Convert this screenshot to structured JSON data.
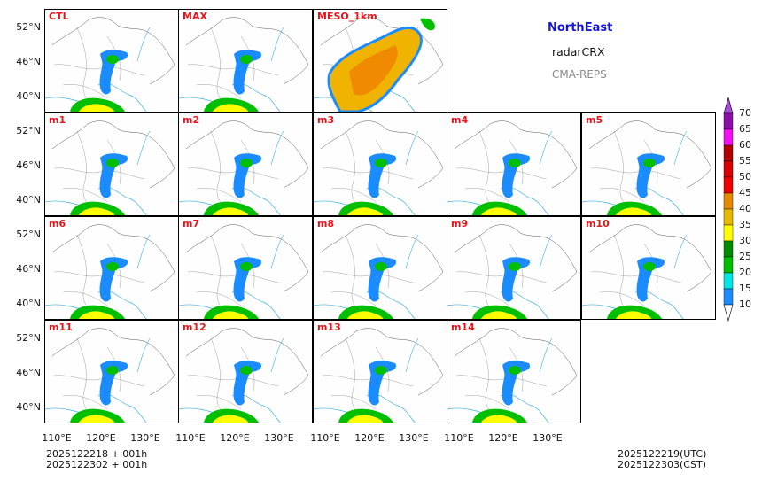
{
  "region_title": "NorthEast",
  "variable_title": "radarCRX",
  "model_title": "CMA-REPS",
  "panels": [
    "CTL",
    "MAX",
    "MESO_1km",
    "m1",
    "m2",
    "m3",
    "m4",
    "m5",
    "m6",
    "m7",
    "m8",
    "m9",
    "m10",
    "m11",
    "m12",
    "m13",
    "m14"
  ],
  "y_ticks": [
    "52°N",
    "46°N",
    "40°N"
  ],
  "x_ticks": [
    "110°E",
    "120°E",
    "130°E"
  ],
  "colorbar": {
    "labels": [
      "70",
      "65",
      "60",
      "55",
      "50",
      "45",
      "40",
      "35",
      "30",
      "25",
      "20",
      "15",
      "10"
    ],
    "colors": [
      "#a64dd9",
      "#8c0fa8",
      "#f20ff2",
      "#b30000",
      "#d90000",
      "#f20000",
      "#e68a00",
      "#e6b800",
      "#ffff00",
      "#008c00",
      "#00bf00",
      "#00e5e5",
      "#1a8cff"
    ]
  },
  "footer_left": [
    "2025122218  +  001h",
    "2025122302  +  001h"
  ],
  "footer_right": [
    "2025122219(UTC)",
    "2025122303(CST)"
  ]
}
